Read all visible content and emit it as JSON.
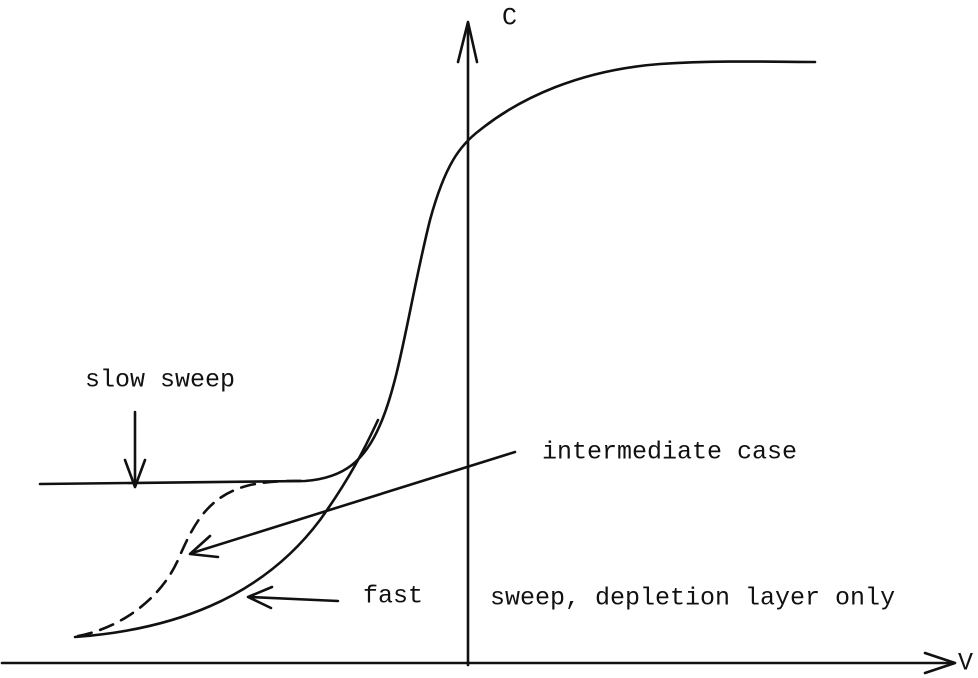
{
  "axes": {
    "y_label": "C",
    "x_label": "V"
  },
  "annotations": [
    "slow sweep",
    "intermediate case",
    "fast",
    "sweep, depletion layer only"
  ]
}
